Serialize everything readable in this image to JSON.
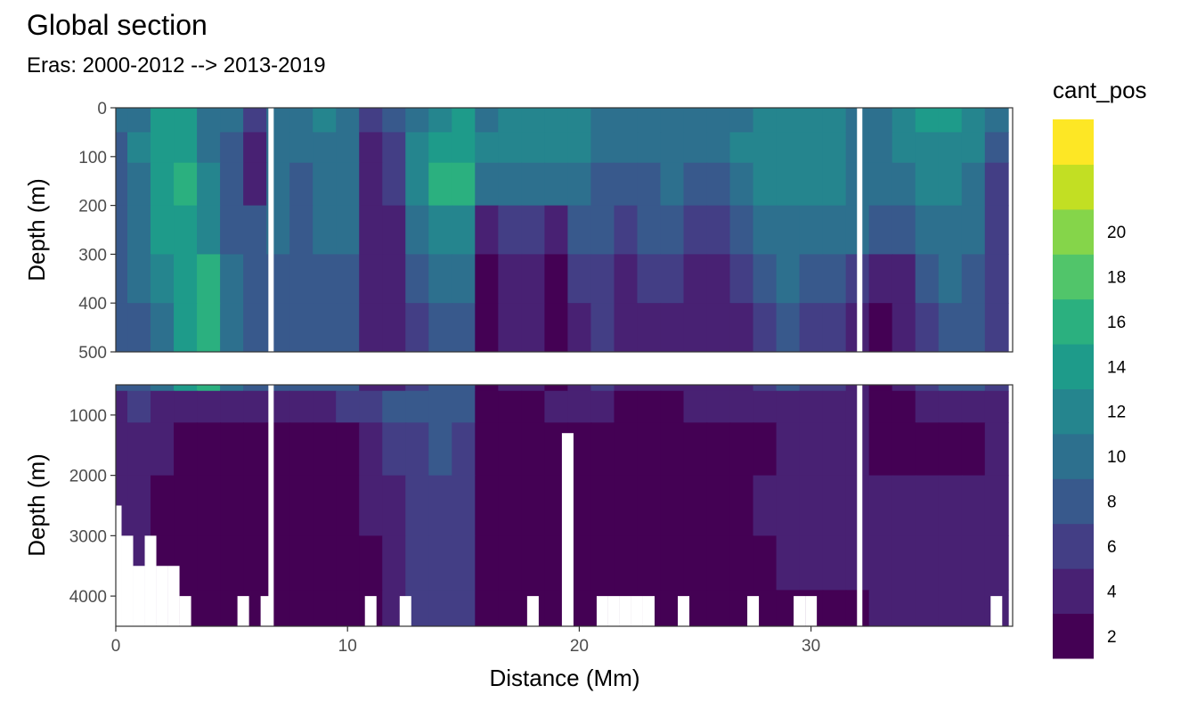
{
  "header": {
    "title": "Global section",
    "subtitle": "Eras: 2000-2012 --> 2013-2019"
  },
  "chart_data": {
    "type": "heatmap",
    "title": "Global section",
    "subtitle": "Eras: 2000-2012 --> 2013-2019",
    "xlabel": "Distance (Mm)",
    "ylabel": "Depth (m)",
    "xlim": [
      0,
      38.7
    ],
    "x_ticks": [
      0,
      10,
      20,
      30
    ],
    "panels": [
      {
        "name": "upper",
        "ylim": [
          0,
          500
        ],
        "y_ticks": [
          0,
          100,
          200,
          300,
          400,
          500
        ],
        "y_reversed": true
      },
      {
        "name": "lower",
        "ylim": [
          500,
          4500
        ],
        "y_ticks": [
          1000,
          2000,
          3000,
          4000
        ],
        "y_reversed": true
      }
    ],
    "grid": true,
    "legend": {
      "title": "cant_pos",
      "position": "right",
      "breaks": [
        2,
        4,
        6,
        8,
        10,
        12,
        14,
        16,
        18,
        20
      ],
      "colors": [
        "#440154",
        "#482173",
        "#433E85",
        "#38598C",
        "#2D708E",
        "#25858E",
        "#1E9B8A",
        "#2BB07F",
        "#51C56A",
        "#85D54A",
        "#C2DF23",
        "#FDE725"
      ]
    },
    "gaps_x": [
      6.7,
      32.1
    ],
    "field": {
      "x": [
        0,
        1,
        2,
        3,
        4,
        5,
        6,
        7,
        8,
        9,
        10,
        11,
        12,
        13,
        14,
        15,
        16,
        17,
        18,
        19,
        20,
        21,
        22,
        23,
        24,
        25,
        26,
        27,
        28,
        29,
        30,
        31,
        32,
        33,
        34,
        35,
        36,
        37,
        38
      ],
      "depth_levels": [
        25,
        75,
        150,
        250,
        350,
        450,
        750,
        1500,
        2500,
        3500,
        4300
      ],
      "cant_pos": [
        [
          8,
          9,
          12,
          12,
          9,
          9,
          5,
          9,
          9,
          10,
          8,
          4,
          6,
          9,
          10,
          12,
          9,
          11,
          11,
          11,
          10,
          9,
          9,
          9,
          8,
          8,
          8,
          9,
          11,
          11,
          10,
          10,
          9,
          9,
          11,
          12,
          12,
          10,
          8
        ],
        [
          7,
          10,
          13,
          12,
          9,
          7,
          3,
          8,
          9,
          9,
          9,
          3,
          5,
          10,
          12,
          13,
          10,
          10,
          11,
          10,
          10,
          9,
          8,
          9,
          8,
          8,
          8,
          10,
          11,
          11,
          10,
          10,
          9,
          8,
          10,
          11,
          11,
          10,
          7
        ],
        [
          6,
          9,
          13,
          15,
          10,
          6,
          3,
          8,
          6,
          9,
          9,
          2,
          4,
          11,
          14,
          14,
          9,
          8,
          9,
          9,
          8,
          7,
          7,
          7,
          8,
          7,
          7,
          9,
          10,
          11,
          10,
          10,
          9,
          8,
          9,
          10,
          10,
          8,
          5
        ],
        [
          7,
          9,
          12,
          13,
          11,
          7,
          6,
          8,
          7,
          8,
          8,
          2,
          3,
          8,
          10,
          10,
          3,
          4,
          4,
          3,
          6,
          6,
          5,
          7,
          6,
          5,
          5,
          6,
          8,
          9,
          8,
          8,
          8,
          7,
          6,
          8,
          9,
          8,
          5
        ],
        [
          7,
          8,
          10,
          13,
          14,
          9,
          6,
          7,
          7,
          7,
          7,
          3,
          3,
          6,
          8,
          8,
          1,
          3,
          2,
          1,
          4,
          5,
          3,
          5,
          4,
          3,
          3,
          4,
          6,
          8,
          7,
          6,
          5,
          3,
          3,
          6,
          8,
          7,
          5
        ],
        [
          6,
          7,
          9,
          12,
          14,
          8,
          6,
          6,
          6,
          6,
          6,
          3,
          3,
          5,
          7,
          7,
          1,
          2,
          2,
          1,
          3,
          4,
          2,
          3,
          3,
          2,
          3,
          3,
          4,
          6,
          5,
          4,
          3,
          1,
          2,
          4,
          7,
          6,
          5
        ],
        [
          3,
          4,
          3,
          3,
          3,
          3,
          3,
          3,
          3,
          3,
          4,
          4,
          6,
          7,
          6,
          6,
          1,
          1,
          1,
          2,
          2,
          2,
          1,
          1,
          1,
          2,
          2,
          2,
          3,
          3,
          3,
          3,
          3,
          1,
          1,
          2,
          3,
          3,
          3
        ],
        [
          3,
          3,
          2,
          1,
          1,
          1,
          1,
          1,
          1,
          1,
          1,
          3,
          4,
          5,
          6,
          5,
          1,
          1,
          1,
          1,
          1,
          1,
          1,
          1,
          1,
          1,
          1,
          1,
          1,
          2,
          2,
          2,
          2,
          1,
          1,
          1,
          1,
          1,
          2
        ],
        [
          3,
          2,
          1,
          1,
          1,
          1,
          1,
          1,
          1,
          1,
          1,
          2,
          3,
          4,
          5,
          5,
          1,
          1,
          1,
          1,
          1,
          1,
          1,
          1,
          1,
          1,
          1,
          1,
          2,
          2,
          2,
          2,
          2,
          2,
          2,
          2,
          2,
          2,
          2
        ],
        [
          3,
          2,
          1,
          1,
          1,
          1,
          1,
          1,
          1,
          1,
          1,
          1,
          2,
          4,
          5,
          5,
          1,
          1,
          1,
          1,
          1,
          1,
          1,
          1,
          1,
          1,
          1,
          1,
          1,
          2,
          2,
          2,
          2,
          2,
          2,
          2,
          2,
          2,
          2
        ],
        [
          2,
          2,
          1,
          1,
          1,
          1,
          1,
          1,
          1,
          1,
          1,
          1,
          2,
          4,
          5,
          5,
          1,
          1,
          1,
          1,
          1,
          1,
          1,
          1,
          1,
          1,
          1,
          1,
          1,
          1,
          1,
          1,
          1,
          2,
          2,
          2,
          2,
          2,
          2
        ]
      ]
    },
    "bottom_depth": {
      "x": [
        0,
        0.5,
        1,
        1.5,
        2,
        2.5,
        3,
        3.5,
        4,
        4.5,
        5,
        5.5,
        6,
        6.5,
        7,
        7.5,
        8,
        8.5,
        9,
        9.5,
        10,
        10.5,
        11,
        11.5,
        12,
        12.5,
        13,
        13.5,
        14,
        14.5,
        15,
        15.5,
        16,
        16.5,
        17,
        17.5,
        18,
        18.5,
        19,
        19.5,
        20,
        20.5,
        21,
        21.5,
        22,
        22.5,
        23,
        23.5,
        24,
        24.5,
        25,
        25.5,
        26,
        26.5,
        27,
        27.5,
        28,
        28.5,
        29,
        29.5,
        30,
        30.5,
        31,
        31.5,
        32,
        32.5,
        33,
        33.5,
        34,
        34.5,
        35,
        35.5,
        36,
        36.5,
        37,
        37.5,
        38,
        38.5
      ],
      "depth": [
        2500,
        3000,
        3500,
        3000,
        3500,
        3500,
        4000,
        4500,
        4500,
        4500,
        4500,
        4000,
        4500,
        4000,
        4500,
        4500,
        4500,
        4500,
        4500,
        4500,
        4500,
        4500,
        4000,
        4500,
        4500,
        4000,
        4500,
        4500,
        4500,
        4500,
        4500,
        4500,
        4500,
        4500,
        4500,
        4500,
        4000,
        4500,
        4500,
        1300,
        4500,
        4500,
        4000,
        4000,
        4000,
        4000,
        4000,
        4500,
        4500,
        4000,
        4500,
        4500,
        4500,
        4500,
        4500,
        4000,
        4500,
        4500,
        4500,
        4000,
        4000,
        4500,
        4500,
        4500,
        4500,
        4500,
        4500,
        4500,
        4500,
        4500,
        4500,
        4500,
        4500,
        4500,
        4500,
        4500,
        4000,
        4500
      ]
    }
  }
}
